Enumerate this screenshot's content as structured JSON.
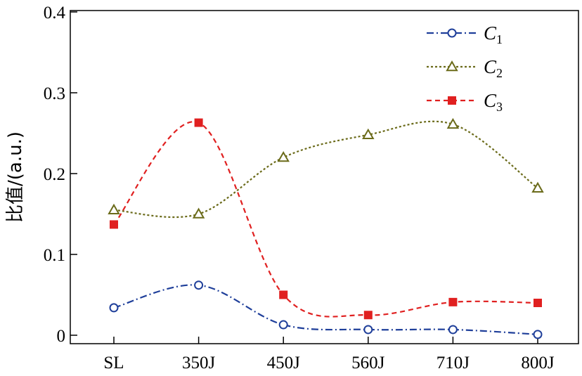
{
  "chart_data": {
    "type": "line",
    "title": "",
    "xlabel": "",
    "ylabel": "比值/(a.u.)",
    "categories": [
      "SL",
      "350J",
      "450J",
      "560J",
      "710J",
      "800J"
    ],
    "ylim": [
      0,
      0.4
    ],
    "yticks": [
      0,
      0.1,
      0.2,
      0.3,
      0.4
    ],
    "ytick_labels": [
      "0",
      "0.1",
      "0.2",
      "0.3",
      "0.4"
    ],
    "grid": false,
    "legend_position": "top-right",
    "series": [
      {
        "name": "C",
        "subscript": "1",
        "values": [
          0.034,
          0.062,
          0.013,
          0.007,
          0.007,
          0.001
        ],
        "color": "#1f3f9a",
        "marker": "circle-open",
        "line": "dash-dot"
      },
      {
        "name": "C",
        "subscript": "2",
        "values": [
          0.155,
          0.15,
          0.22,
          0.248,
          0.261,
          0.182
        ],
        "color": "#6b6b1a",
        "marker": "triangle-open",
        "line": "dotted"
      },
      {
        "name": "C",
        "subscript": "3",
        "values": [
          0.137,
          0.263,
          0.05,
          0.025,
          0.041,
          0.04
        ],
        "color": "#e02020",
        "marker": "square-filled",
        "line": "dashed"
      }
    ]
  }
}
